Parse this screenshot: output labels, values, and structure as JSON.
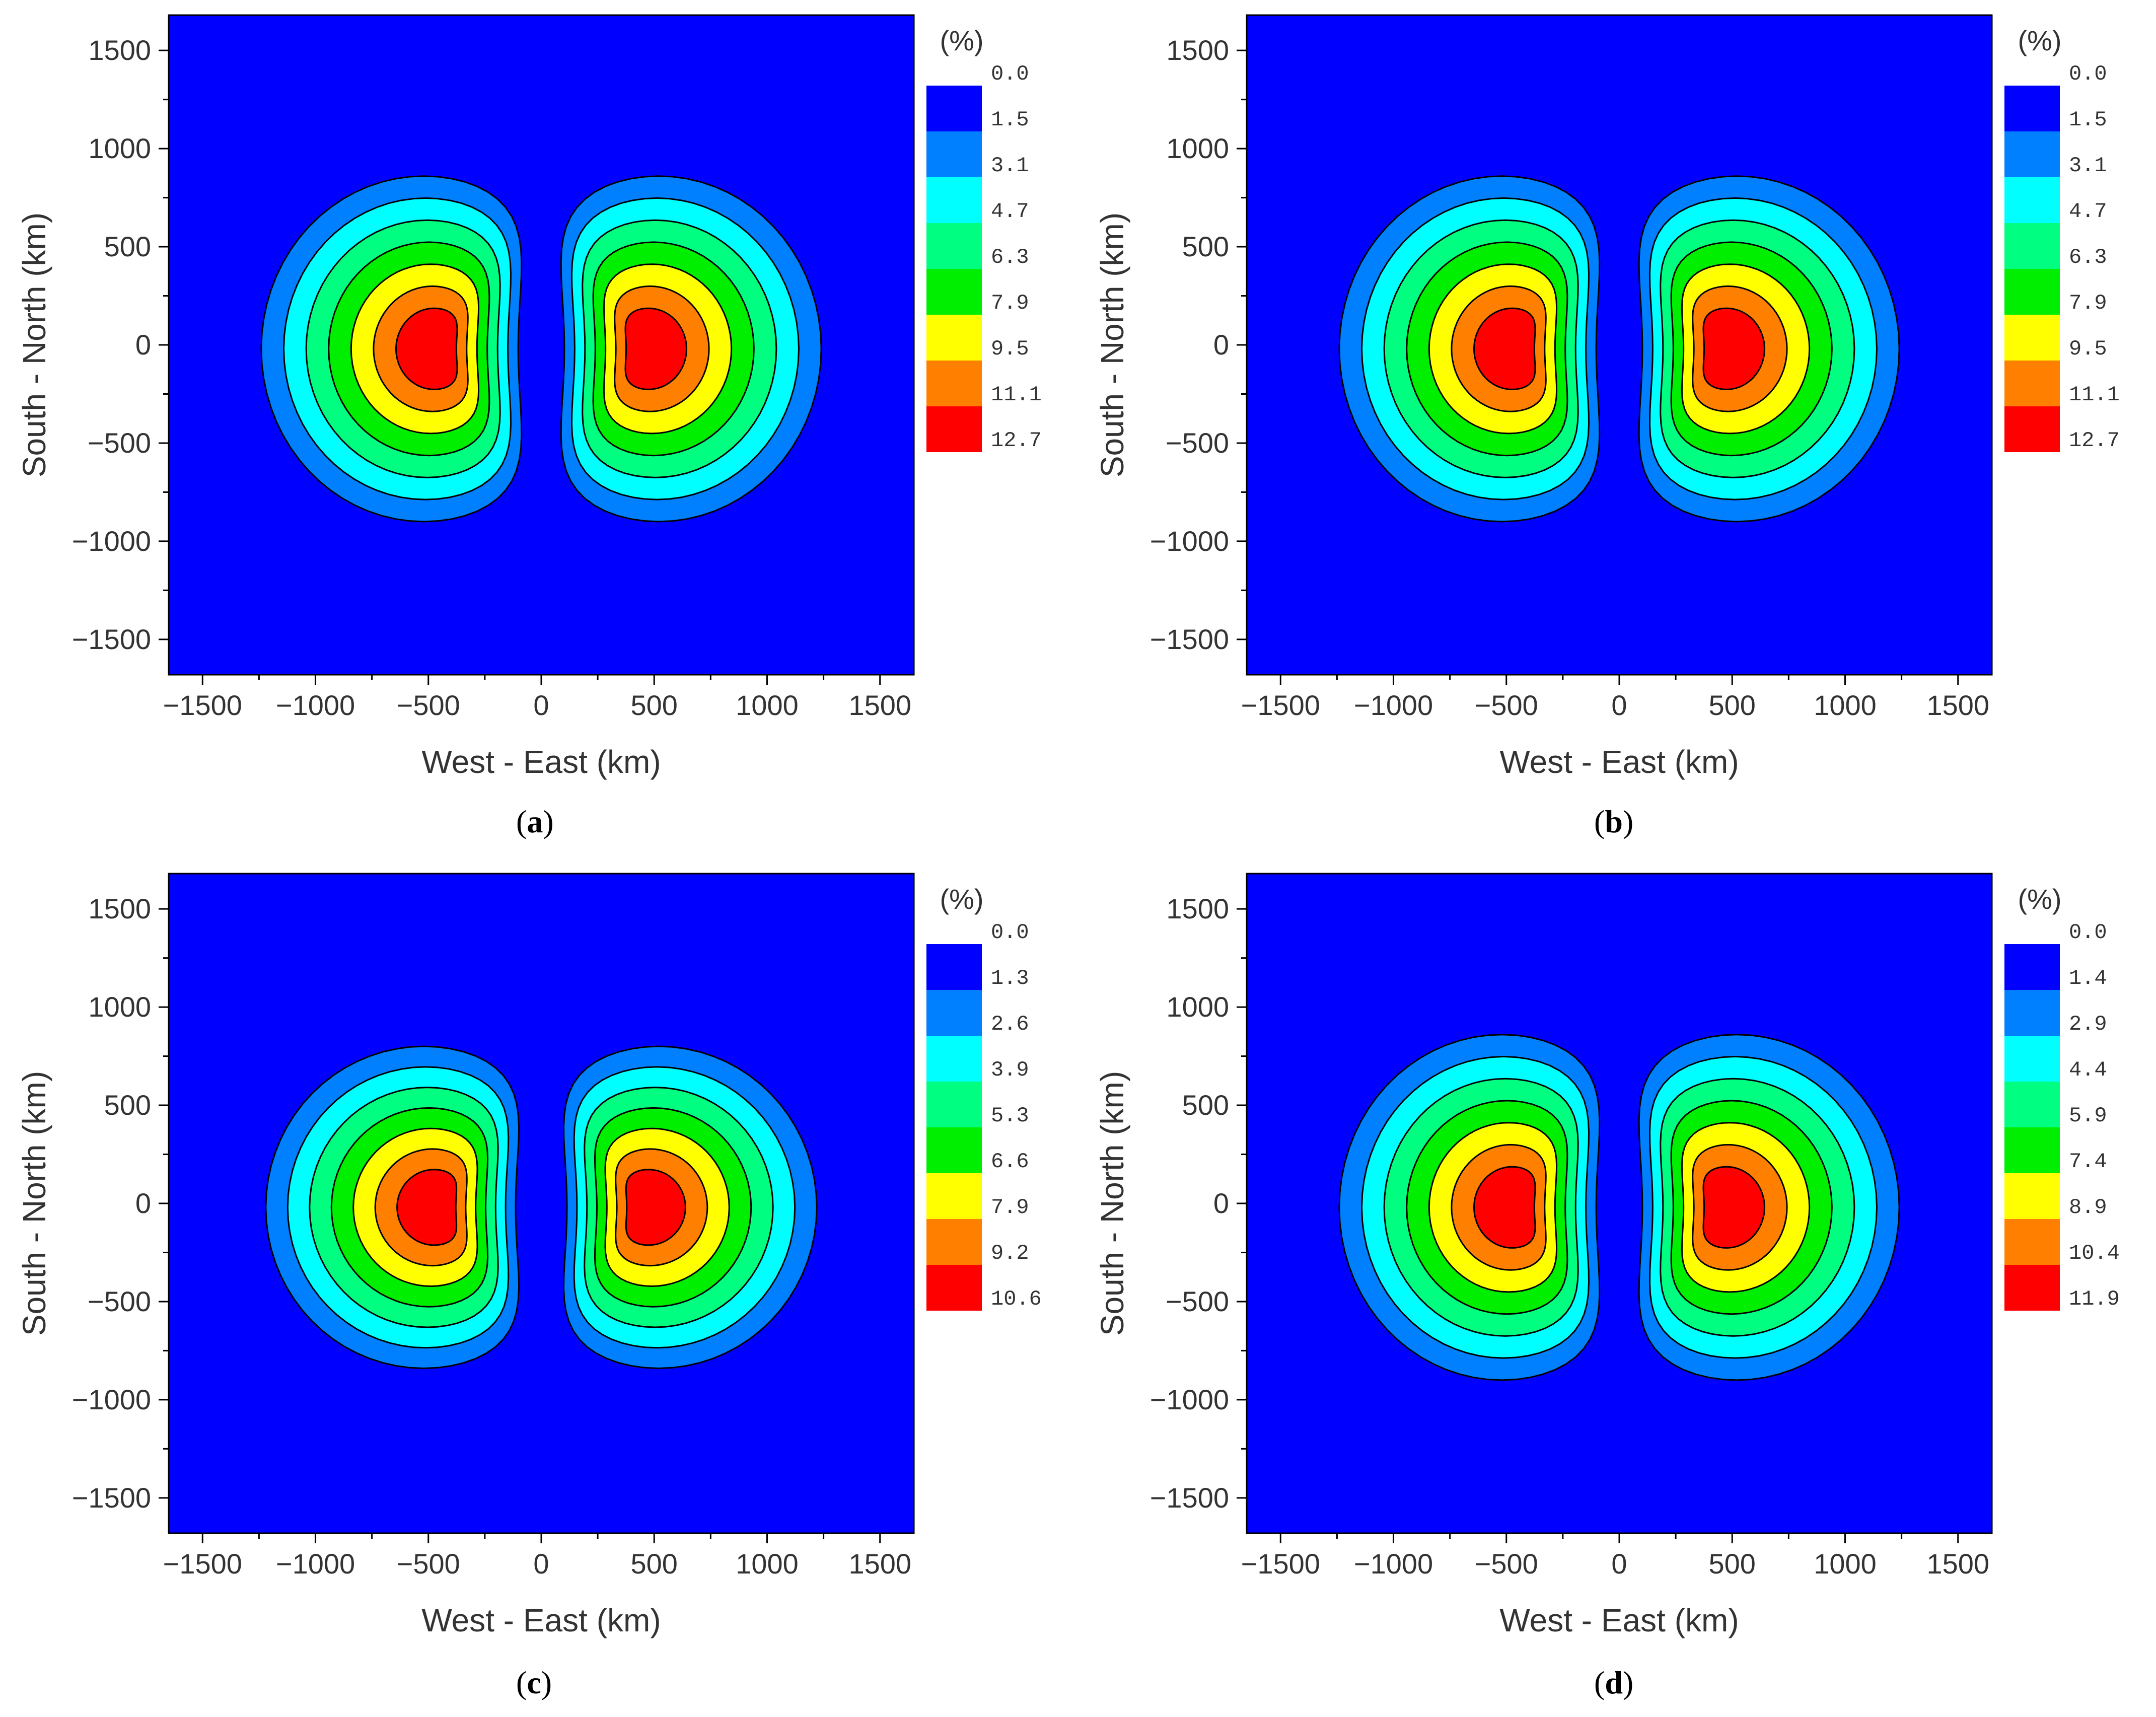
{
  "chart_data": [
    {
      "type": "heatmap",
      "panel_label": "a",
      "xlabel": "West - East (km)",
      "ylabel": "South - North (km)",
      "xlim": [
        -1650,
        1650
      ],
      "ylim": [
        -1680,
        1680
      ],
      "x_ticks": [
        "−1500",
        "−1000",
        "−500",
        "0",
        "500",
        "1000",
        "1500"
      ],
      "x_tick_values": [
        -1500,
        -1000,
        -500,
        0,
        500,
        1000,
        1500
      ],
      "y_ticks": [
        "1500",
        "1000",
        "500",
        "0",
        "−500",
        "−1000",
        "−1500"
      ],
      "y_tick_values": [
        1500,
        1000,
        500,
        0,
        -500,
        -1000,
        -1500
      ],
      "colorbar_title": "(%)",
      "colorbar_levels": [
        "0.0",
        "1.5",
        "3.1",
        "4.7",
        "6.3",
        "7.9",
        "9.5",
        "11.1",
        "12.7"
      ],
      "lobes": [
        {
          "cx": -520,
          "cy": -20,
          "rx": 720,
          "ry": 880
        },
        {
          "cx": 520,
          "cy": -20,
          "rx": 720,
          "ry": 880
        }
      ]
    },
    {
      "type": "heatmap",
      "panel_label": "b",
      "xlabel": "West - East (km)",
      "ylabel": "South - North (km)",
      "xlim": [
        -1650,
        1650
      ],
      "ylim": [
        -1680,
        1680
      ],
      "x_ticks": [
        "−1500",
        "−1000",
        "−500",
        "0",
        "500",
        "1000",
        "1500"
      ],
      "x_tick_values": [
        -1500,
        -1000,
        -500,
        0,
        500,
        1000,
        1500
      ],
      "y_ticks": [
        "1500",
        "1000",
        "500",
        "0",
        "−500",
        "−1000",
        "−1500"
      ],
      "y_tick_values": [
        1500,
        1000,
        500,
        0,
        -500,
        -1000,
        -1500
      ],
      "colorbar_title": "(%)",
      "colorbar_levels": [
        "0.0",
        "1.5",
        "3.1",
        "4.7",
        "6.3",
        "7.9",
        "9.5",
        "11.1",
        "12.7"
      ],
      "lobes": [
        {
          "cx": -520,
          "cy": -20,
          "rx": 720,
          "ry": 880
        },
        {
          "cx": 520,
          "cy": -20,
          "rx": 720,
          "ry": 880
        }
      ]
    },
    {
      "type": "heatmap",
      "panel_label": "c",
      "xlabel": "West - East (km)",
      "ylabel": "South - North (km)",
      "xlim": [
        -1650,
        1650
      ],
      "ylim": [
        -1680,
        1680
      ],
      "x_ticks": [
        "−1500",
        "−1000",
        "−500",
        "0",
        "500",
        "1000",
        "1500"
      ],
      "x_tick_values": [
        -1500,
        -1000,
        -500,
        0,
        500,
        1000,
        1500
      ],
      "y_ticks": [
        "1500",
        "1000",
        "500",
        "0",
        "−500",
        "−1000",
        "−1500"
      ],
      "y_tick_values": [
        1500,
        1000,
        500,
        0,
        -500,
        -1000,
        -1500
      ],
      "colorbar_title": "(%)",
      "colorbar_levels": [
        "0.0",
        "1.3",
        "2.6",
        "3.9",
        "5.3",
        "6.6",
        "7.9",
        "9.2",
        "10.6"
      ],
      "lobes": [
        {
          "cx": -520,
          "cy": -20,
          "rx": 700,
          "ry": 820
        },
        {
          "cx": 520,
          "cy": -20,
          "rx": 700,
          "ry": 820
        }
      ]
    },
    {
      "type": "heatmap",
      "panel_label": "d",
      "xlabel": "West - East (km)",
      "ylabel": "South - North (km)",
      "xlim": [
        -1650,
        1650
      ],
      "ylim": [
        -1680,
        1680
      ],
      "x_ticks": [
        "−1500",
        "−1000",
        "−500",
        "0",
        "500",
        "1000",
        "1500"
      ],
      "x_tick_values": [
        -1500,
        -1000,
        -500,
        0,
        500,
        1000,
        1500
      ],
      "y_ticks": [
        "1500",
        "1000",
        "500",
        "0",
        "−500",
        "−1000",
        "−1500"
      ],
      "y_tick_values": [
        1500,
        1000,
        500,
        0,
        -500,
        -1000,
        -1500
      ],
      "colorbar_title": "(%)",
      "colorbar_levels": [
        "0.0",
        "1.4",
        "2.9",
        "4.4",
        "5.9",
        "7.4",
        "8.9",
        "10.4",
        "11.9"
      ],
      "lobes": [
        {
          "cx": -520,
          "cy": -20,
          "rx": 720,
          "ry": 880
        },
        {
          "cx": 520,
          "cy": -20,
          "rx": 720,
          "ry": 880
        }
      ]
    }
  ],
  "colors": {
    "levels": [
      "#0000FF",
      "#0080FF",
      "#00FFFF",
      "#00FF80",
      "#00EE00",
      "#FFFF00",
      "#FF8000",
      "#FF0000"
    ],
    "axis": "#000000"
  }
}
